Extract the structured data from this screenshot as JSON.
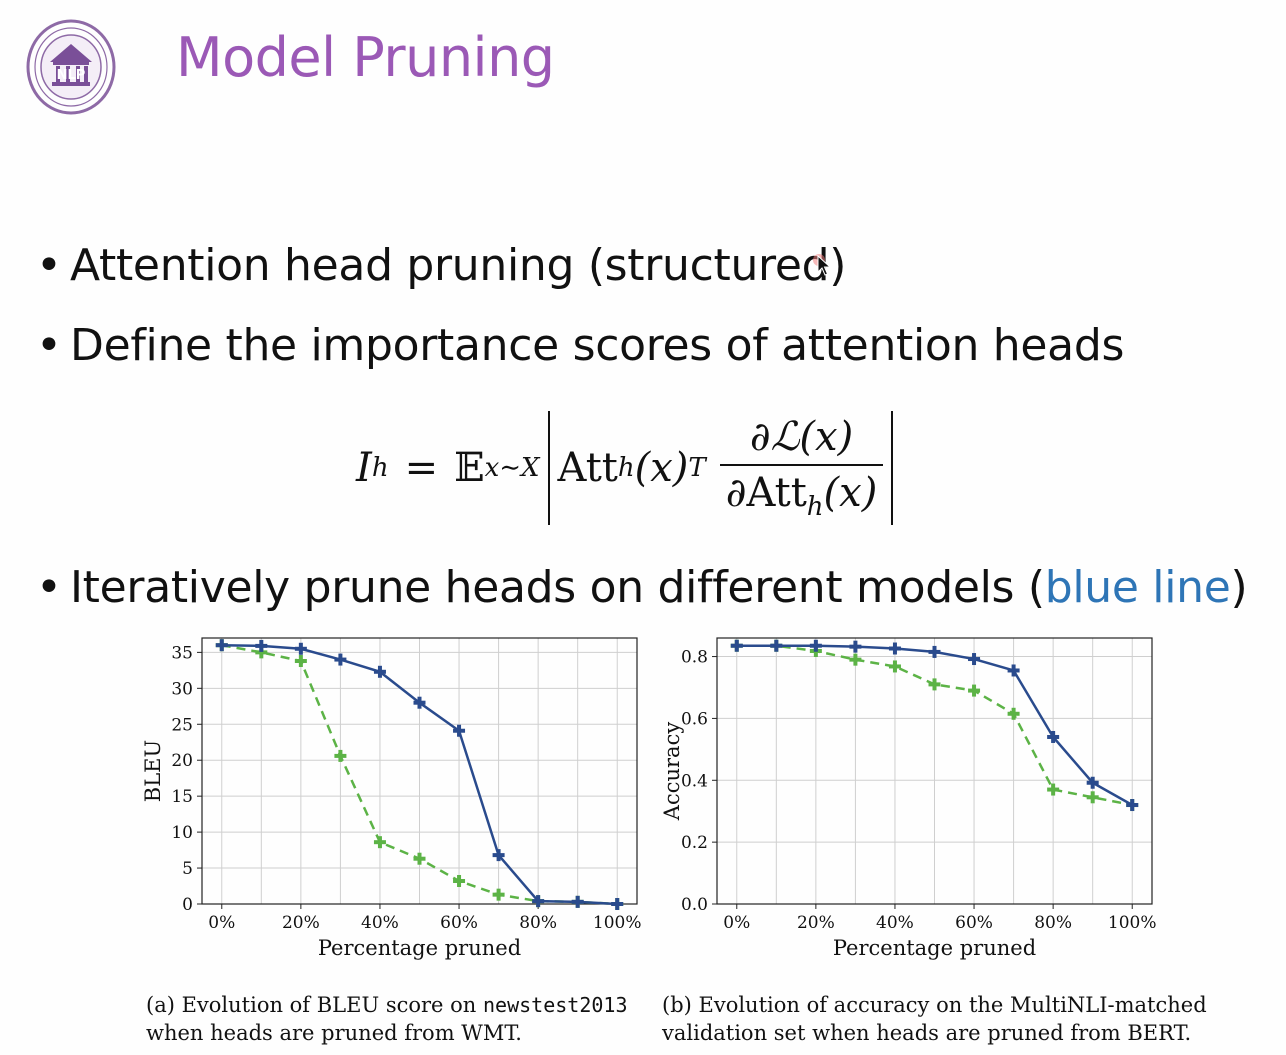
{
  "slide": {
    "title": "Model Pruning",
    "logo_text": "NLP",
    "bullets": [
      {
        "text": "Attention head pruning (structured)"
      },
      {
        "text": "Define the importance scores of attention heads"
      },
      {
        "text_before": "Iteratively prune heads on different models (",
        "highlight": "blue line",
        "text_after": ")"
      }
    ]
  },
  "formula": {
    "lhs": "I",
    "lhs_sub": "h",
    "expect": "𝔼",
    "expect_sub": "x∼X",
    "att": "Att",
    "att_sub": "h",
    "att_arg": "(x)",
    "sup": "T",
    "numerator": "∂ℒ(x)",
    "denominator_pre": "∂Att",
    "denominator_sub": "h",
    "denominator_post": "(x)"
  },
  "colors": {
    "title": "#9b59b6",
    "highlight": "#2e75b6",
    "series_blue": "#2a4b8d",
    "series_green": "#5cb346"
  },
  "chart_data": [
    {
      "type": "line",
      "xlabel": "Percentage pruned",
      "ylabel": "BLEU",
      "ylim": [
        0,
        37
      ],
      "yticks": [
        0,
        5,
        10,
        15,
        20,
        25,
        30,
        35
      ],
      "x": [
        0,
        10,
        20,
        30,
        40,
        50,
        60,
        70,
        80,
        90,
        100
      ],
      "xticks": [
        "0%",
        "20%",
        "40%",
        "60%",
        "80%",
        "100%"
      ],
      "xtick_values": [
        0,
        20,
        40,
        60,
        80,
        100
      ],
      "grid": true,
      "series": [
        {
          "color": "#2a4b8d",
          "style": "solid",
          "values": [
            36.0,
            35.9,
            35.5,
            34.0,
            32.3,
            28.0,
            24.1,
            6.8,
            0.4,
            0.3,
            0.0
          ]
        },
        {
          "color": "#5cb346",
          "style": "dashed",
          "values": [
            36.0,
            35.0,
            33.8,
            20.6,
            8.6,
            6.3,
            3.2,
            1.3,
            0.4,
            0.3,
            0.0
          ]
        }
      ],
      "caption_label": "(a) Evolution of BLEU score on ",
      "caption_code": "newstest2013",
      "caption_line2": "when heads are pruned from WMT."
    },
    {
      "type": "line",
      "xlabel": "Percentage pruned",
      "ylabel": "Accuracy",
      "ylim": [
        0,
        0.86
      ],
      "yticks": [
        0.0,
        0.2,
        0.4,
        0.6,
        0.8
      ],
      "ytick_labels": [
        "0.0",
        "0.2",
        "0.4",
        "0.6",
        "0.8"
      ],
      "x": [
        0,
        10,
        20,
        30,
        40,
        50,
        60,
        70,
        80,
        90,
        100
      ],
      "xticks": [
        "0%",
        "20%",
        "40%",
        "60%",
        "80%",
        "100%"
      ],
      "xtick_values": [
        0,
        20,
        40,
        60,
        80,
        100
      ],
      "grid": true,
      "series": [
        {
          "color": "#2a4b8d",
          "style": "solid",
          "values": [
            0.835,
            0.835,
            0.835,
            0.832,
            0.826,
            0.815,
            0.792,
            0.755,
            0.54,
            0.392,
            0.32
          ]
        },
        {
          "color": "#5cb346",
          "style": "dashed",
          "values": [
            0.835,
            0.835,
            0.818,
            0.79,
            0.768,
            0.71,
            0.69,
            0.615,
            0.37,
            0.345,
            0.32
          ]
        }
      ],
      "caption_line1": "(b) Evolution of accuracy on the MultiNLI-matched",
      "caption_line2": "validation set when heads are pruned from BERT."
    }
  ]
}
